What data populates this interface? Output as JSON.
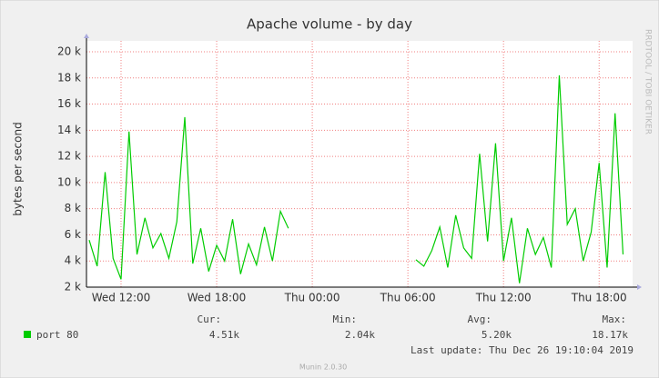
{
  "chart_data": {
    "type": "line",
    "title": "Apache volume - by day",
    "ylabel": "bytes per second",
    "side_note": "RRDTOOL / TOBI OETIKER",
    "xlim": [
      9.83,
      44.1
    ],
    "ylim": [
      2000,
      20000
    ],
    "xticks": [
      {
        "value": 12,
        "label": "Wed 12:00"
      },
      {
        "value": 18,
        "label": "Wed 18:00"
      },
      {
        "value": 24,
        "label": "Thu 00:00"
      },
      {
        "value": 30,
        "label": "Thu 06:00"
      },
      {
        "value": 36,
        "label": "Thu 12:00"
      },
      {
        "value": 42,
        "label": "Thu 18:00"
      }
    ],
    "yticks": [
      {
        "value": 2000,
        "label": "2 k"
      },
      {
        "value": 4000,
        "label": "4 k"
      },
      {
        "value": 6000,
        "label": "6 k"
      },
      {
        "value": 8000,
        "label": "8 k"
      },
      {
        "value": 10000,
        "label": "10 k"
      },
      {
        "value": 12000,
        "label": "12 k"
      },
      {
        "value": 14000,
        "label": "14 k"
      },
      {
        "value": 16000,
        "label": "16 k"
      },
      {
        "value": 18000,
        "label": "18 k"
      },
      {
        "value": 20000,
        "label": "20 k"
      }
    ],
    "grid": true,
    "x": [
      10,
      10.5,
      11,
      11.5,
      12,
      12.5,
      13,
      13.5,
      14,
      14.5,
      15,
      15.5,
      16,
      16.5,
      17,
      17.5,
      18,
      18.5,
      19,
      19.5,
      20,
      20.5,
      21,
      21.5,
      22,
      22.5,
      23,
      23.5,
      24,
      24.5,
      25,
      25.5,
      26,
      26.5,
      27,
      27.5,
      28,
      28.5,
      29,
      29.5,
      30,
      30.5,
      31,
      31.5,
      32,
      32.5,
      33,
      33.5,
      34,
      34.5,
      35,
      35.5,
      36,
      36.5,
      37,
      37.5,
      38,
      38.5,
      39,
      39.5,
      40,
      40.5,
      41,
      41.5,
      42,
      42.5,
      43,
      43.5
    ],
    "series": [
      {
        "name": "port 80",
        "color": "#00cc00",
        "values": [
          5600,
          3600,
          10800,
          4200,
          2600,
          13900,
          4500,
          7300,
          5000,
          6100,
          4200,
          7000,
          15000,
          3800,
          6500,
          3200,
          5200,
          4000,
          7200,
          3000,
          5300,
          3700,
          6600,
          4000,
          7800,
          6500,
          null,
          null,
          null,
          null,
          null,
          null,
          null,
          null,
          null,
          null,
          null,
          null,
          null,
          null,
          null,
          4100,
          3600,
          4800,
          6600,
          3500,
          7500,
          5000,
          4200,
          12200,
          5500,
          13000,
          4000,
          7300,
          2300,
          6500,
          4500,
          5800,
          3500,
          18200,
          6800,
          8000,
          4000,
          6200,
          11500,
          3500,
          15300,
          4500
        ]
      }
    ],
    "legend": {
      "headers": [
        "Cur:",
        "Min:",
        "Avg:",
        "Max:"
      ],
      "rows": [
        {
          "name": "port 80",
          "values": [
            "4.51k",
            "2.04k",
            "5.20k",
            "18.17k"
          ]
        }
      ]
    },
    "last_update": "Last update: Thu Dec 26 19:10:04 2019",
    "footer": "Munin 2.0.30"
  }
}
